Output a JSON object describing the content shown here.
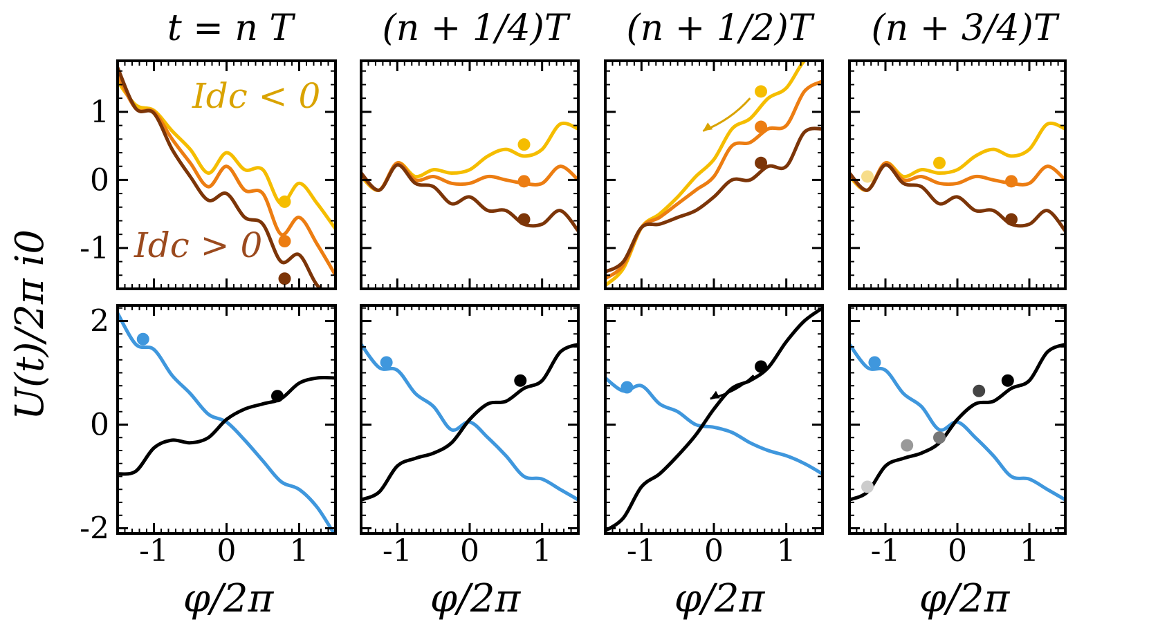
{
  "colors": {
    "idc_neg": "#f5bd00",
    "idc_mid": "#ec7d12",
    "idc_pos": "#7c3508",
    "blue": "#3f97dd",
    "black": "#000000",
    "legend_neg": "#d9a300",
    "legend_pos": "#9b4a1e"
  },
  "figure": {
    "column_titles": [
      "t = n T",
      "(n + 1/4)T",
      "(n + 1/2)T",
      "(n + 3/4)T"
    ],
    "ylabel": "U(t)/2π i0",
    "xlabel": "φ/2π",
    "top_legend": {
      "negative": "Idc < 0",
      "positive": "Idc > 0"
    },
    "x_tick_labels": [
      "-1",
      "0",
      "1"
    ],
    "top_y_tick_labels": [
      "1",
      "0",
      "-1"
    ],
    "bottom_y_tick_labels": [
      "2",
      "0",
      "-2"
    ]
  },
  "chart_data": [
    {
      "type": "line",
      "row": "top",
      "column": "t = n T",
      "xlim": [
        -1.5,
        1.5
      ],
      "ylim": [
        -1.6,
        1.75
      ],
      "xticks": [
        -1,
        0,
        1
      ],
      "yticks": [
        -1,
        0,
        1
      ],
      "series": [
        {
          "color": "#f5bd00",
          "x": [
            -1.5,
            -1.25,
            -1.0,
            -0.75,
            -0.5,
            -0.25,
            0.0,
            0.25,
            0.5,
            0.75,
            1.0,
            1.25,
            1.5
          ],
          "y": [
            1.45,
            1.1,
            1.02,
            0.72,
            0.45,
            0.1,
            0.4,
            0.15,
            0.15,
            -0.35,
            -0.05,
            -0.35,
            -0.72
          ]
        },
        {
          "color": "#ec7d12",
          "x": [
            -1.5,
            -1.25,
            -1.0,
            -0.75,
            -0.5,
            -0.25,
            0.0,
            0.25,
            0.5,
            0.75,
            1.0,
            1.25,
            1.5
          ],
          "y": [
            1.55,
            1.05,
            1.0,
            0.6,
            0.25,
            -0.1,
            0.2,
            -0.15,
            -0.2,
            -0.8,
            -0.55,
            -0.95,
            -1.4
          ]
        },
        {
          "color": "#7c3508",
          "x": [
            -1.5,
            -1.25,
            -1.0,
            -0.75,
            -0.5,
            -0.25,
            0.0,
            0.25,
            0.5,
            0.75,
            1.0,
            1.25,
            1.5
          ],
          "y": [
            1.65,
            1.05,
            0.98,
            0.45,
            0.05,
            -0.3,
            -0.2,
            -0.55,
            -0.65,
            -1.2,
            -1.1,
            -1.55,
            -1.7
          ]
        }
      ],
      "markers": [
        {
          "x": 0.8,
          "y": -0.32,
          "color": "#f5bd00"
        },
        {
          "x": 0.8,
          "y": -0.9,
          "color": "#ec7d12"
        },
        {
          "x": 0.8,
          "y": -1.45,
          "color": "#7c3508"
        }
      ]
    },
    {
      "type": "line",
      "row": "top",
      "column": "(n + 1/4)T",
      "xlim": [
        -1.5,
        1.5
      ],
      "ylim": [
        -1.6,
        1.75
      ],
      "xticks": [
        -1,
        0,
        1
      ],
      "yticks": [
        -1,
        0,
        1
      ],
      "series": [
        {
          "color": "#f5bd00",
          "x": [
            -1.5,
            -1.25,
            -1.0,
            -0.75,
            -0.5,
            -0.25,
            0.0,
            0.25,
            0.5,
            0.75,
            1.0,
            1.25,
            1.5
          ],
          "y": [
            0.05,
            -0.15,
            0.25,
            0.05,
            0.15,
            0.1,
            0.15,
            0.35,
            0.45,
            0.35,
            0.45,
            0.82,
            0.75
          ]
        },
        {
          "color": "#ec7d12",
          "x": [
            -1.5,
            -1.25,
            -1.0,
            -0.75,
            -0.5,
            -0.25,
            0.0,
            0.25,
            0.5,
            0.75,
            1.0,
            1.25,
            1.5
          ],
          "y": [
            0.08,
            -0.15,
            0.25,
            0.0,
            0.05,
            -0.05,
            -0.05,
            0.05,
            0.0,
            -0.05,
            -0.05,
            0.2,
            0.0
          ]
        },
        {
          "color": "#7c3508",
          "x": [
            -1.5,
            -1.25,
            -1.0,
            -0.75,
            -0.5,
            -0.25,
            0.0,
            0.25,
            0.5,
            0.75,
            1.0,
            1.25,
            1.5
          ],
          "y": [
            0.1,
            -0.15,
            0.22,
            -0.05,
            -0.1,
            -0.35,
            -0.25,
            -0.45,
            -0.45,
            -0.65,
            -0.65,
            -0.45,
            -0.75
          ]
        }
      ],
      "markers": [
        {
          "x": 0.75,
          "y": 0.52,
          "color": "#f5bd00"
        },
        {
          "x": 0.75,
          "y": -0.02,
          "color": "#ec7d12"
        },
        {
          "x": 0.75,
          "y": -0.58,
          "color": "#7c3508"
        }
      ]
    },
    {
      "type": "line",
      "row": "top",
      "column": "(n + 1/2)T",
      "xlim": [
        -1.5,
        1.5
      ],
      "ylim": [
        -1.6,
        1.75
      ],
      "xticks": [
        -1,
        0,
        1
      ],
      "yticks": [
        -1,
        0,
        1
      ],
      "series": [
        {
          "color": "#f5bd00",
          "x": [
            -1.5,
            -1.25,
            -1.0,
            -0.75,
            -0.5,
            -0.25,
            0.0,
            0.25,
            0.5,
            0.75,
            1.0,
            1.25,
            1.5
          ],
          "y": [
            -1.55,
            -1.3,
            -0.7,
            -0.5,
            -0.25,
            0.05,
            0.3,
            0.75,
            0.9,
            1.2,
            1.35,
            1.75,
            1.9
          ]
        },
        {
          "color": "#ec7d12",
          "x": [
            -1.5,
            -1.25,
            -1.0,
            -0.75,
            -0.5,
            -0.25,
            0.0,
            0.25,
            0.5,
            0.75,
            1.0,
            1.25,
            1.5
          ],
          "y": [
            -1.45,
            -1.25,
            -0.7,
            -0.55,
            -0.35,
            -0.15,
            0.05,
            0.5,
            0.55,
            0.75,
            0.8,
            1.3,
            1.45
          ]
        },
        {
          "color": "#7c3508",
          "x": [
            -1.5,
            -1.25,
            -1.0,
            -0.75,
            -0.5,
            -0.25,
            0.0,
            0.25,
            0.5,
            0.75,
            1.0,
            1.25,
            1.5
          ],
          "y": [
            -1.35,
            -1.2,
            -0.7,
            -0.65,
            -0.55,
            -0.45,
            -0.25,
            0.0,
            0.0,
            0.2,
            0.2,
            0.7,
            0.75
          ]
        }
      ],
      "markers": [
        {
          "x": 0.65,
          "y": 1.3,
          "color": "#f5bd00"
        },
        {
          "x": 0.65,
          "y": 0.78,
          "color": "#ec7d12"
        },
        {
          "x": 0.65,
          "y": 0.25,
          "color": "#7c3508"
        }
      ],
      "arrow": {
        "from": [
          0.5,
          1.2
        ],
        "to": [
          -0.15,
          0.72
        ],
        "color": "#d9a300"
      }
    },
    {
      "type": "line",
      "row": "top",
      "column": "(n + 3/4)T",
      "xlim": [
        -1.5,
        1.5
      ],
      "ylim": [
        -1.6,
        1.75
      ],
      "xticks": [
        -1,
        0,
        1
      ],
      "yticks": [
        -1,
        0,
        1
      ],
      "series": [
        {
          "color": "#f5bd00",
          "x": [
            -1.5,
            -1.25,
            -1.0,
            -0.75,
            -0.5,
            -0.25,
            0.0,
            0.25,
            0.5,
            0.75,
            1.0,
            1.25,
            1.5
          ],
          "y": [
            0.05,
            -0.15,
            0.25,
            0.05,
            0.15,
            0.1,
            0.15,
            0.35,
            0.45,
            0.35,
            0.45,
            0.82,
            0.75
          ]
        },
        {
          "color": "#ec7d12",
          "x": [
            -1.5,
            -1.25,
            -1.0,
            -0.75,
            -0.5,
            -0.25,
            0.0,
            0.25,
            0.5,
            0.75,
            1.0,
            1.25,
            1.5
          ],
          "y": [
            0.08,
            -0.15,
            0.25,
            0.0,
            0.05,
            -0.05,
            -0.05,
            0.05,
            0.0,
            -0.05,
            -0.05,
            0.2,
            0.0
          ]
        },
        {
          "color": "#7c3508",
          "x": [
            -1.5,
            -1.25,
            -1.0,
            -0.75,
            -0.5,
            -0.25,
            0.0,
            0.25,
            0.5,
            0.75,
            1.0,
            1.25,
            1.5
          ],
          "y": [
            0.1,
            -0.15,
            0.22,
            -0.05,
            -0.1,
            -0.35,
            -0.25,
            -0.45,
            -0.45,
            -0.65,
            -0.65,
            -0.45,
            -0.75
          ]
        }
      ],
      "markers": [
        {
          "x": -1.25,
          "y": 0.05,
          "color": "#f7dd8a"
        },
        {
          "x": -0.25,
          "y": 0.25,
          "color": "#f5bd00"
        },
        {
          "x": 0.75,
          "y": -0.02,
          "color": "#ec7d12"
        },
        {
          "x": 0.75,
          "y": -0.58,
          "color": "#7c3508"
        }
      ]
    },
    {
      "type": "line",
      "row": "bottom",
      "column": "t = n T",
      "xlim": [
        -1.5,
        1.5
      ],
      "ylim": [
        -2.1,
        2.3
      ],
      "xticks": [
        -1,
        0,
        1
      ],
      "yticks": [
        -2,
        0,
        2
      ],
      "series": [
        {
          "color": "#3f97dd",
          "x": [
            -1.5,
            -1.25,
            -1.0,
            -0.75,
            -0.5,
            -0.25,
            0.0,
            0.25,
            0.5,
            0.75,
            1.0,
            1.25,
            1.5
          ],
          "y": [
            2.15,
            1.55,
            1.45,
            0.95,
            0.6,
            0.2,
            0.05,
            -0.3,
            -0.7,
            -1.1,
            -1.25,
            -1.6,
            -2.15
          ]
        },
        {
          "color": "#000000",
          "x": [
            -1.5,
            -1.25,
            -1.0,
            -0.75,
            -0.5,
            -0.25,
            0.0,
            0.25,
            0.5,
            0.75,
            1.0,
            1.25,
            1.5
          ],
          "y": [
            -0.95,
            -0.9,
            -0.45,
            -0.3,
            -0.35,
            -0.25,
            0.1,
            0.3,
            0.4,
            0.5,
            0.8,
            0.9,
            0.9
          ]
        }
      ],
      "markers": [
        {
          "x": -1.15,
          "y": 1.65,
          "color": "#3f97dd"
        },
        {
          "x": 0.7,
          "y": 0.55,
          "color": "#000000"
        }
      ]
    },
    {
      "type": "line",
      "row": "bottom",
      "column": "(n + 1/4)T",
      "xlim": [
        -1.5,
        1.5
      ],
      "ylim": [
        -2.1,
        2.3
      ],
      "xticks": [
        -1,
        0,
        1
      ],
      "yticks": [
        -2,
        0,
        2
      ],
      "series": [
        {
          "color": "#3f97dd",
          "x": [
            -1.5,
            -1.25,
            -1.0,
            -0.75,
            -0.5,
            -0.25,
            0.0,
            0.25,
            0.5,
            0.75,
            1.0,
            1.25,
            1.5
          ],
          "y": [
            1.55,
            1.1,
            1.05,
            0.6,
            0.35,
            -0.1,
            0.05,
            -0.25,
            -0.6,
            -1.0,
            -1.05,
            -1.25,
            -1.45
          ]
        },
        {
          "color": "#000000",
          "x": [
            -1.5,
            -1.25,
            -1.0,
            -0.75,
            -0.5,
            -0.25,
            0.0,
            0.25,
            0.5,
            0.75,
            1.0,
            1.25,
            1.5
          ],
          "y": [
            -1.45,
            -1.3,
            -0.8,
            -0.65,
            -0.55,
            -0.35,
            0.1,
            0.4,
            0.45,
            0.7,
            0.85,
            1.4,
            1.55
          ]
        }
      ],
      "markers": [
        {
          "x": -1.15,
          "y": 1.2,
          "color": "#3f97dd"
        },
        {
          "x": 0.7,
          "y": 0.85,
          "color": "#000000"
        }
      ]
    },
    {
      "type": "line",
      "row": "bottom",
      "column": "(n + 1/2)T",
      "xlim": [
        -1.5,
        1.5
      ],
      "ylim": [
        -2.1,
        2.3
      ],
      "xticks": [
        -1,
        0,
        1
      ],
      "yticks": [
        -2,
        0,
        2
      ],
      "series": [
        {
          "color": "#3f97dd",
          "x": [
            -1.5,
            -1.25,
            -1.0,
            -0.75,
            -0.5,
            -0.25,
            0.0,
            0.25,
            0.5,
            0.75,
            1.0,
            1.25,
            1.5
          ],
          "y": [
            0.9,
            0.65,
            0.75,
            0.4,
            0.25,
            0.0,
            -0.05,
            -0.15,
            -0.35,
            -0.5,
            -0.6,
            -0.75,
            -0.95
          ]
        },
        {
          "color": "#000000",
          "x": [
            -1.5,
            -1.25,
            -1.0,
            -0.75,
            -0.5,
            -0.25,
            0.0,
            0.25,
            0.5,
            0.75,
            1.0,
            1.25,
            1.5
          ],
          "y": [
            -2.05,
            -1.8,
            -1.2,
            -0.95,
            -0.6,
            -0.2,
            0.3,
            0.7,
            0.85,
            1.1,
            1.6,
            2.0,
            2.25
          ]
        }
      ],
      "markers": [
        {
          "x": -1.2,
          "y": 0.72,
          "color": "#3f97dd"
        },
        {
          "x": 0.65,
          "y": 1.12,
          "color": "#000000"
        }
      ],
      "arrow": {
        "from": [
          0.55,
          0.95
        ],
        "to": [
          -0.05,
          0.5
        ],
        "color": "#000000"
      }
    },
    {
      "type": "line",
      "row": "bottom",
      "column": "(n + 3/4)T",
      "xlim": [
        -1.5,
        1.5
      ],
      "ylim": [
        -2.1,
        2.3
      ],
      "xticks": [
        -1,
        0,
        1
      ],
      "yticks": [
        -2,
        0,
        2
      ],
      "series": [
        {
          "color": "#3f97dd",
          "x": [
            -1.5,
            -1.25,
            -1.0,
            -0.75,
            -0.5,
            -0.25,
            0.0,
            0.25,
            0.5,
            0.75,
            1.0,
            1.25,
            1.5
          ],
          "y": [
            1.55,
            1.1,
            1.05,
            0.6,
            0.35,
            -0.1,
            0.05,
            -0.25,
            -0.6,
            -1.0,
            -1.05,
            -1.25,
            -1.45
          ]
        },
        {
          "color": "#000000",
          "x": [
            -1.5,
            -1.25,
            -1.0,
            -0.75,
            -0.5,
            -0.25,
            0.0,
            0.25,
            0.5,
            0.75,
            1.0,
            1.25,
            1.5
          ],
          "y": [
            -1.45,
            -1.3,
            -0.8,
            -0.65,
            -0.55,
            -0.35,
            0.1,
            0.4,
            0.45,
            0.7,
            0.85,
            1.4,
            1.55
          ]
        }
      ],
      "markers": [
        {
          "x": -1.15,
          "y": 1.2,
          "color": "#3f97dd"
        },
        {
          "x": -1.25,
          "y": -1.2,
          "color": "#cccccc"
        },
        {
          "x": -0.7,
          "y": -0.4,
          "color": "#999999"
        },
        {
          "x": -0.25,
          "y": -0.25,
          "color": "#777777"
        },
        {
          "x": 0.3,
          "y": 0.65,
          "color": "#444444"
        },
        {
          "x": 0.7,
          "y": 0.85,
          "color": "#000000"
        }
      ]
    }
  ]
}
